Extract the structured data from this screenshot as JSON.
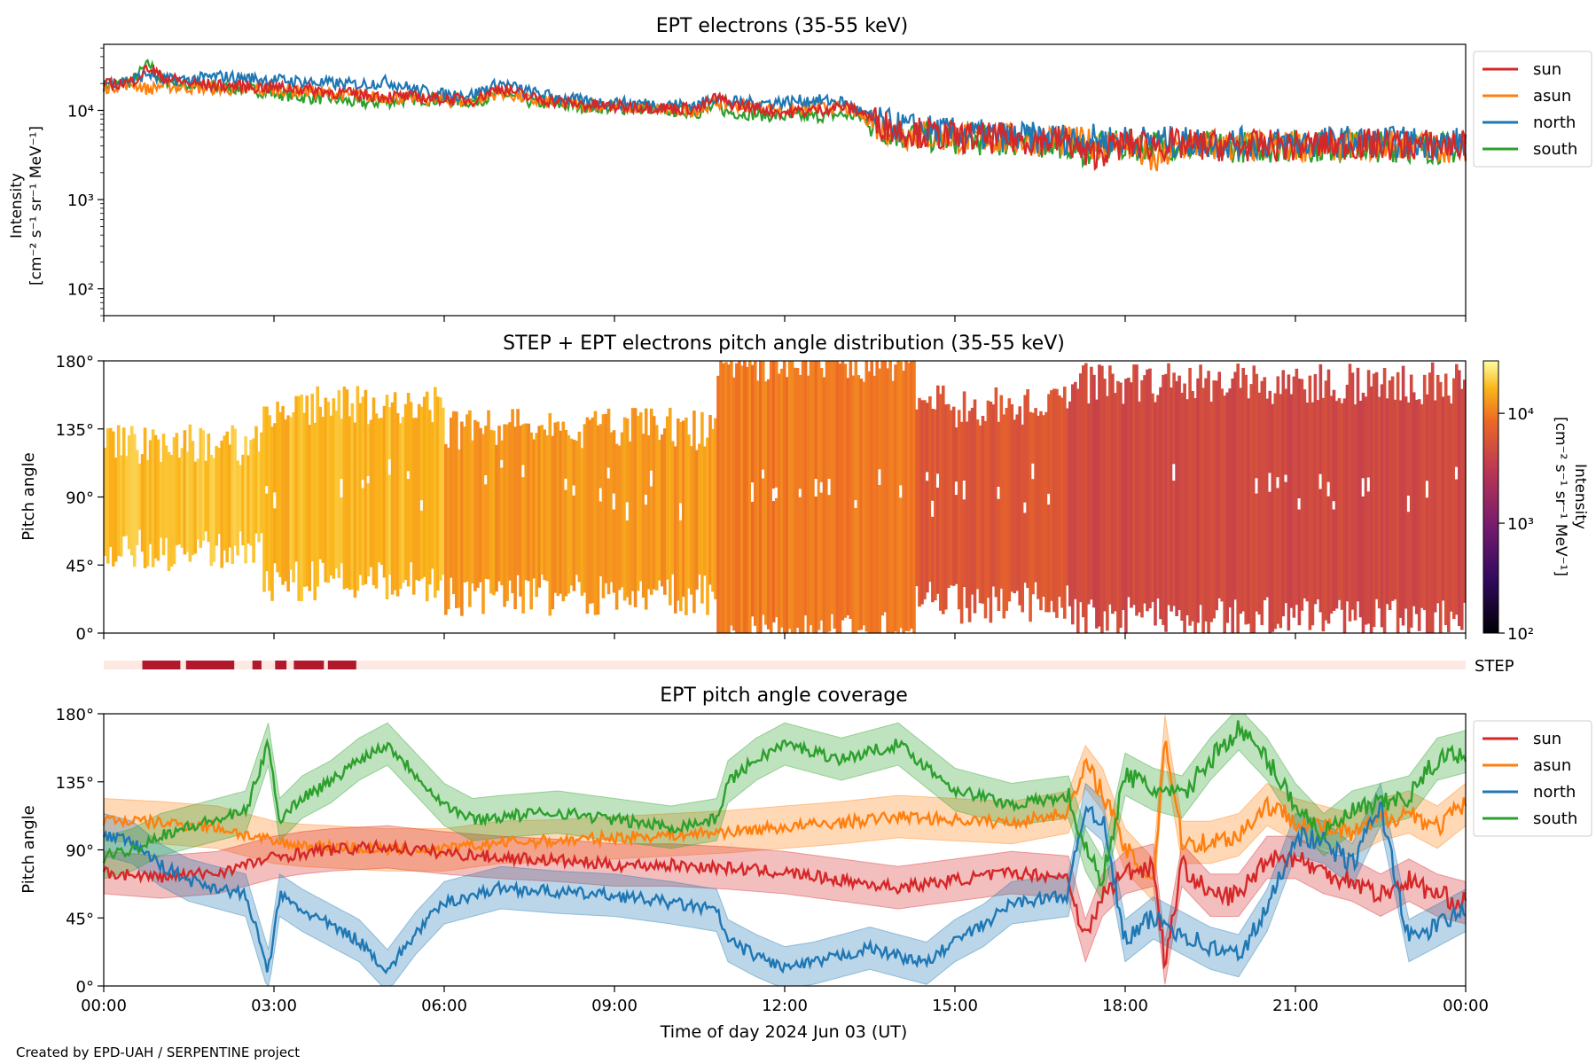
{
  "footer": "Created by EPD-UAH / SERPENTINE project",
  "colors": {
    "sun": "#d62728",
    "asun": "#ff7f0e",
    "north": "#1f77b4",
    "south": "#2ca02c",
    "step_bar": "#b2182b",
    "step_track": "#fde8e2"
  },
  "chart_data": [
    {
      "type": "line",
      "title": "EPT electrons (35-55 keV)",
      "ylabel_line1": "Intensity",
      "ylabel_line2": "[cm⁻² s⁻¹ sr⁻¹ MeV⁻¹]",
      "yscale": "log",
      "ylim": [
        50,
        55000
      ],
      "yticks": [
        {
          "v": 100,
          "label": "10²"
        },
        {
          "v": 1000,
          "label": "10³"
        },
        {
          "v": 10000,
          "label": "10⁴"
        }
      ],
      "xlim_hours": [
        0,
        24
      ],
      "legend_position": "outside-right",
      "series": [
        {
          "name": "sun",
          "x": [
            0,
            0.5,
            0.8,
            1,
            1.5,
            2,
            2.5,
            3,
            3.5,
            4,
            4.5,
            5,
            5.5,
            6,
            6.5,
            7,
            7.5,
            8,
            8.5,
            9,
            9.5,
            10,
            10.5,
            10.8,
            11,
            11.5,
            12,
            12.5,
            13,
            13.3,
            13.6,
            14,
            15,
            16,
            17,
            17.3,
            18,
            19,
            20,
            21,
            22,
            23,
            24
          ],
          "y": [
            19000,
            21000,
            30000,
            24000,
            20000,
            19000,
            18500,
            18000,
            17500,
            16000,
            15000,
            14500,
            14000,
            13500,
            13000,
            18000,
            14000,
            12500,
            11500,
            11000,
            11000,
            10500,
            10500,
            14000,
            12000,
            10500,
            9500,
            10000,
            11000,
            10000,
            7500,
            6000,
            5000,
            4800,
            4500,
            3000,
            4200,
            4100,
            4000,
            4000,
            4200,
            4100,
            4000
          ]
        },
        {
          "name": "asun",
          "x": [
            0,
            0.5,
            0.8,
            1,
            1.5,
            2,
            2.5,
            3,
            3.5,
            4,
            4.5,
            5,
            5.5,
            6,
            6.5,
            7,
            7.5,
            8,
            8.5,
            9,
            9.5,
            10,
            10.5,
            10.8,
            11,
            11.5,
            12,
            12.5,
            13,
            13.3,
            13.6,
            14,
            15,
            16,
            17,
            17.3,
            18,
            18.5,
            19,
            20,
            21,
            22,
            23,
            24
          ],
          "y": [
            18000,
            20000,
            17000,
            19000,
            18000,
            17500,
            17000,
            17000,
            16500,
            15500,
            14500,
            14000,
            13500,
            13000,
            12500,
            16000,
            13000,
            12000,
            11500,
            11000,
            10500,
            10000,
            10000,
            12500,
            11500,
            11000,
            10000,
            10500,
            11000,
            9000,
            7000,
            5500,
            5000,
            4700,
            4500,
            4300,
            4200,
            2500,
            4000,
            3900,
            4000,
            4100,
            4000,
            3900
          ]
        },
        {
          "name": "north",
          "x": [
            0,
            0.5,
            0.8,
            1,
            1.5,
            2,
            2.5,
            3,
            3.5,
            4,
            4.5,
            5,
            5.5,
            6,
            6.5,
            7,
            7.5,
            8,
            8.5,
            9,
            9.5,
            10,
            10.5,
            10.8,
            11,
            11.5,
            12,
            12.5,
            13,
            13.3,
            13.6,
            14,
            15,
            16,
            17,
            18,
            19,
            20,
            21,
            22,
            23,
            24
          ],
          "y": [
            20000,
            22000,
            26000,
            22000,
            22000,
            24000,
            23000,
            22000,
            21000,
            20000,
            19500,
            21000,
            17000,
            15000,
            15000,
            20000,
            16000,
            14000,
            12500,
            12000,
            12000,
            11500,
            11500,
            14500,
            12500,
            12000,
            12500,
            13000,
            12500,
            10000,
            7500,
            6500,
            5500,
            5000,
            4800,
            4600,
            4400,
            4300,
            4300,
            4500,
            4400,
            4300
          ]
        },
        {
          "name": "south",
          "x": [
            0,
            0.5,
            0.8,
            1,
            1.5,
            2,
            2.5,
            3,
            3.5,
            4,
            4.5,
            5,
            5.5,
            6,
            6.5,
            7,
            7.5,
            8,
            8.5,
            9,
            9.5,
            10,
            10.5,
            10.8,
            11,
            11.5,
            12,
            12.5,
            13,
            13.3,
            13.6,
            14,
            15,
            16,
            17,
            17.3,
            18,
            19,
            20,
            21,
            22,
            23,
            24
          ],
          "y": [
            19000,
            21000,
            33000,
            22000,
            19000,
            18000,
            17500,
            15500,
            14000,
            13500,
            12000,
            12500,
            13500,
            13000,
            12500,
            15000,
            12500,
            11500,
            11000,
            10500,
            10500,
            10000,
            9500,
            11000,
            9500,
            9000,
            8500,
            8500,
            9000,
            8500,
            6500,
            5500,
            4800,
            4500,
            4300,
            3500,
            4100,
            4000,
            3900,
            3900,
            4000,
            3900,
            3700
          ]
        }
      ]
    },
    {
      "type": "heatmap",
      "title": "STEP + EPT electrons pitch angle distribution (35-55 keV)",
      "ylabel": "Pitch angle",
      "ylim": [
        0,
        180
      ],
      "yticks": [
        "0°",
        "45°",
        "90°",
        "135°",
        "180°"
      ],
      "xlim_hours": [
        0,
        24
      ],
      "colorbar": {
        "label_line1": "Intensity",
        "label_line2": "[cm⁻² s⁻¹ sr⁻¹ MeV⁻¹]",
        "scale": "log",
        "range": [
          100,
          30000
        ],
        "ticks": [
          {
            "v": 100,
            "label": "10²"
          },
          {
            "v": 1000,
            "label": "10³"
          },
          {
            "v": 10000,
            "label": "10⁴"
          }
        ]
      },
      "bands": [
        {
          "t": [
            0,
            2.8
          ],
          "lo": 55,
          "hi": 125,
          "intensity": 18000
        },
        {
          "t": [
            2.8,
            6.0
          ],
          "lo": 35,
          "hi": 150,
          "intensity": 17000
        },
        {
          "t": [
            6.0,
            10.8
          ],
          "lo": 25,
          "hi": 135,
          "intensity": 13000
        },
        {
          "t": [
            10.8,
            14.3
          ],
          "lo": 0,
          "hi": 180,
          "intensity": 10000
        },
        {
          "t": [
            14.3,
            17.0
          ],
          "lo": 20,
          "hi": 150,
          "intensity": 6000
        },
        {
          "t": [
            17.0,
            24.0
          ],
          "lo": 10,
          "hi": 165,
          "intensity": 4500
        }
      ]
    },
    {
      "type": "bar",
      "label": "STEP",
      "xlim_hours": [
        0,
        24
      ],
      "segments_hours": [
        [
          0.68,
          1.35
        ],
        [
          1.45,
          2.3
        ],
        [
          2.62,
          2.78
        ],
        [
          3.02,
          3.22
        ],
        [
          3.35,
          3.88
        ],
        [
          3.95,
          4.45
        ]
      ]
    },
    {
      "type": "line",
      "title": "EPT pitch angle coverage",
      "xlabel": "Time of day 2024 Jun 03 (UT)",
      "ylabel": "Pitch angle",
      "ylim": [
        0,
        180
      ],
      "yticks": [
        "0°",
        "45°",
        "90°",
        "135°",
        "180°"
      ],
      "xticks": [
        "00:00",
        "03:00",
        "06:00",
        "09:00",
        "12:00",
        "15:00",
        "18:00",
        "21:00",
        "00:00"
      ],
      "legend_position": "outside-right",
      "series": [
        {
          "name": "sun",
          "x": [
            0,
            1,
            2,
            3,
            3.5,
            4,
            5,
            6,
            7,
            8,
            9,
            10,
            11,
            12,
            13,
            14,
            15,
            16,
            17,
            17.3,
            17.6,
            18,
            18.5,
            18.7,
            19,
            19.5,
            20,
            20.5,
            21,
            21.5,
            22,
            22.5,
            23,
            23.5,
            24
          ],
          "y": [
            75,
            72,
            75,
            85,
            88,
            90,
            92,
            88,
            85,
            83,
            80,
            80,
            78,
            75,
            70,
            65,
            70,
            75,
            72,
            30,
            60,
            75,
            80,
            15,
            80,
            60,
            60,
            85,
            85,
            75,
            70,
            60,
            70,
            60,
            55
          ]
        },
        {
          "name": "asun",
          "x": [
            0,
            1,
            2,
            3,
            3.5,
            4,
            5,
            6,
            7,
            8,
            9,
            10,
            11,
            12,
            13,
            14,
            15,
            16,
            17,
            17.3,
            17.6,
            18,
            18.5,
            18.7,
            19,
            19.5,
            20,
            20.5,
            21,
            21.5,
            22,
            22.5,
            23,
            23.5,
            24
          ],
          "y": [
            110,
            108,
            105,
            95,
            93,
            92,
            90,
            90,
            95,
            96,
            98,
            100,
            102,
            105,
            108,
            112,
            110,
            108,
            115,
            145,
            130,
            90,
            70,
            165,
            95,
            95,
            100,
            120,
            110,
            105,
            100,
            110,
            115,
            105,
            120
          ]
        },
        {
          "name": "north",
          "x": [
            0,
            0.5,
            1,
            1.5,
            2,
            2.5,
            2.9,
            3.1,
            3.5,
            4,
            4.5,
            5,
            5.5,
            6,
            6.5,
            7,
            8,
            9,
            10,
            10.8,
            11,
            11.5,
            12,
            12.5,
            13,
            13.5,
            14,
            14.5,
            15,
            15.5,
            16,
            17,
            17.3,
            17.6,
            18,
            18.5,
            19,
            19.5,
            20,
            20.5,
            21,
            21.5,
            22,
            22.5,
            23,
            23.5,
            24
          ],
          "y": [
            100,
            95,
            80,
            70,
            65,
            60,
            10,
            60,
            50,
            40,
            30,
            10,
            35,
            55,
            60,
            65,
            62,
            60,
            55,
            50,
            30,
            20,
            12,
            15,
            20,
            25,
            20,
            15,
            30,
            40,
            55,
            60,
            120,
            110,
            30,
            45,
            35,
            25,
            20,
            50,
            100,
            95,
            80,
            120,
            30,
            40,
            50
          ]
        },
        {
          "name": "south",
          "x": [
            0,
            0.5,
            1,
            1.5,
            2,
            2.5,
            2.9,
            3.1,
            3.5,
            4,
            4.5,
            5,
            5.5,
            6,
            6.5,
            7,
            8,
            9,
            10,
            10.8,
            11,
            11.5,
            12,
            12.5,
            13,
            13.5,
            14,
            14.5,
            15,
            15.5,
            16,
            17,
            17.3,
            17.6,
            18,
            18.5,
            19,
            19.5,
            20,
            20.5,
            21,
            21.5,
            22,
            22.5,
            23,
            23.5,
            24
          ],
          "y": [
            85,
            90,
            100,
            105,
            110,
            115,
            160,
            110,
            125,
            135,
            150,
            160,
            140,
            120,
            110,
            112,
            115,
            110,
            105,
            110,
            135,
            150,
            160,
            155,
            150,
            155,
            160,
            145,
            130,
            125,
            120,
            125,
            90,
            70,
            140,
            130,
            125,
            150,
            170,
            150,
            120,
            100,
            115,
            120,
            125,
            150,
            155
          ]
        }
      ]
    }
  ]
}
